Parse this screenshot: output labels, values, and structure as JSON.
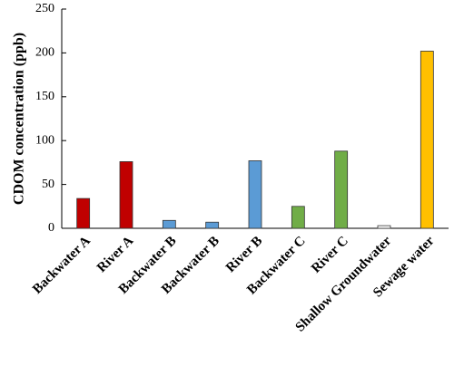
{
  "chart_data": {
    "type": "bar",
    "y_label": "CDOM concentration (ppb)",
    "categories": [
      "Backwater A",
      "River A",
      "Backwater B",
      "Backwater B",
      "River B",
      "Backwater C",
      "River C",
      "Shallow Groundwater",
      "Sewage water"
    ],
    "values": [
      34,
      76,
      9,
      7,
      77,
      25,
      88,
      3,
      202
    ],
    "colors": [
      "#c00000",
      "#c00000",
      "#5b9bd5",
      "#5b9bd5",
      "#5b9bd5",
      "#70ad47",
      "#70ad47",
      "#ffffff",
      "#ffc000"
    ],
    "ylim": [
      0,
      250
    ],
    "yticks": [
      0,
      50,
      100,
      150,
      200,
      250
    ],
    "grid": false
  }
}
